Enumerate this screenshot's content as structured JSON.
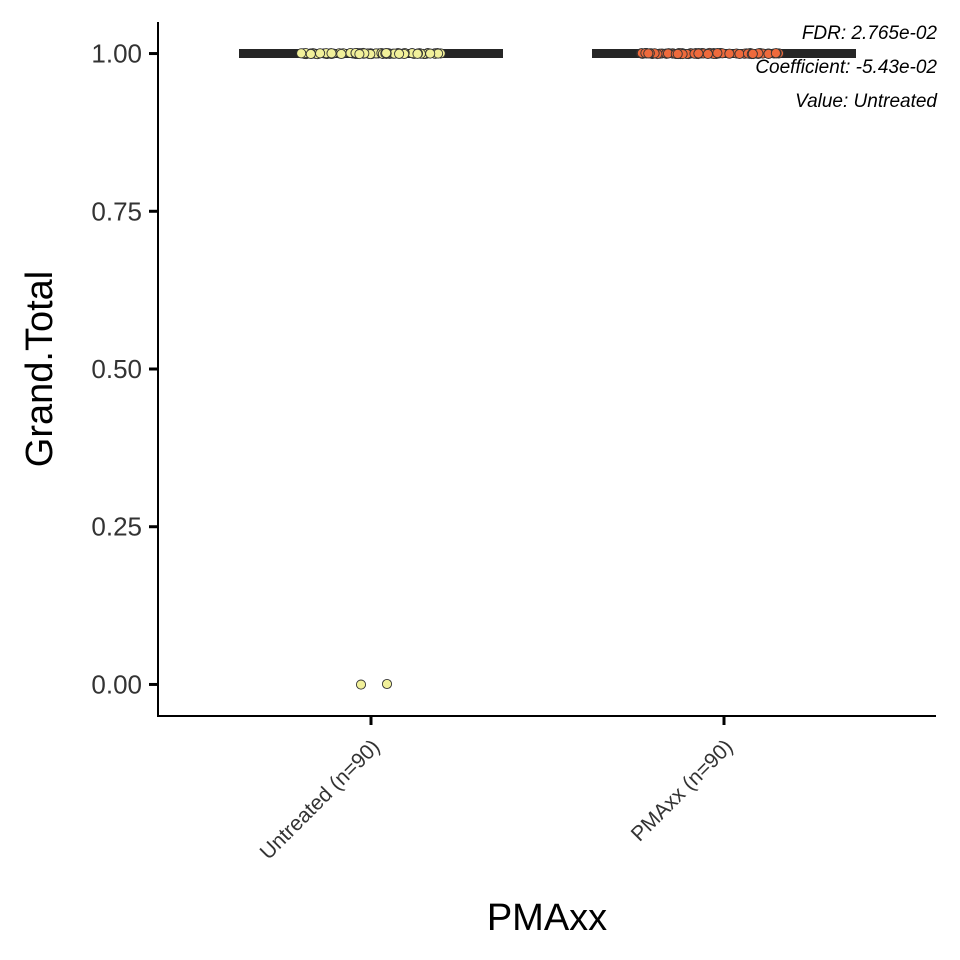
{
  "chart_data": {
    "type": "scatter",
    "xlabel": "PMAxx",
    "ylabel": "Grand.Total",
    "categories": [
      "Untreated (n=90)",
      "PMAxx (n=90)"
    ],
    "ylim": [
      -0.05,
      1.05
    ],
    "y_ticks": [
      "0.00",
      "0.25",
      "0.50",
      "0.75",
      "1.00"
    ],
    "y_tick_values": [
      0,
      0.25,
      0.5,
      0.75,
      1.0
    ],
    "grid": false,
    "series": [
      {
        "category": "Untreated (n=90)",
        "color": "#f1f09a",
        "median": 1.0,
        "n": 90,
        "values_summary": {
          "1.00": 88,
          "0.00": 2
        }
      },
      {
        "category": "PMAxx (n=90)",
        "color": "#ee6a3c",
        "median": 1.0,
        "n": 90,
        "values_summary": {
          "1.00": 90
        }
      }
    ],
    "annotations": [
      "FDR: 2.765e-02",
      "Coefficient: -5.43e-02",
      "Value: Untreated"
    ]
  }
}
